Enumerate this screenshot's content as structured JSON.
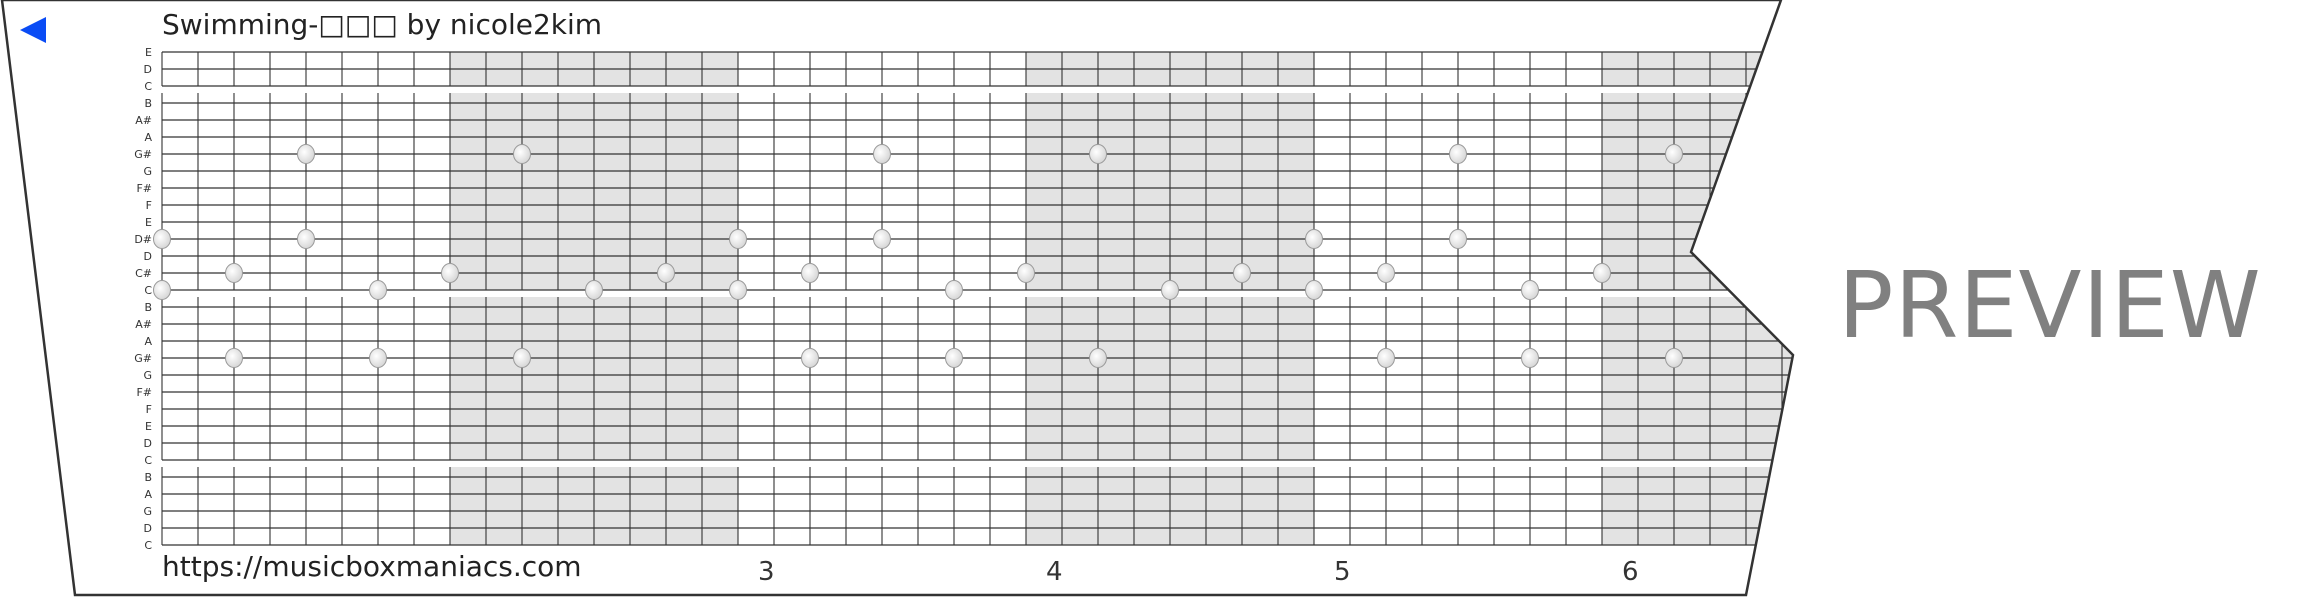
{
  "header": {
    "title": "Swimming-□□□ by nicole2kim",
    "back_icon": "back-triangle-icon"
  },
  "footer": {
    "url": "https://musicboxmaniacs.com"
  },
  "watermark": "PREVIEW",
  "colors": {
    "shade": "#e3e3e3",
    "grid": "#333333",
    "back": "#0a4cf5",
    "watermark": "#808080"
  },
  "score": {
    "row_labels": [
      "E",
      "D",
      "C",
      "B",
      "A#",
      "A",
      "G#",
      "G",
      "F#",
      "F",
      "E",
      "D#",
      "D",
      "C#",
      "C",
      "B",
      "A#",
      "A",
      "G#",
      "G",
      "F#",
      "F",
      "E",
      "D",
      "C",
      "B",
      "A",
      "G",
      "D",
      "C"
    ],
    "measure_labels": [
      {
        "measure": 3,
        "label": "3"
      },
      {
        "measure": 4,
        "label": "4"
      },
      {
        "measure": 5,
        "label": "5"
      },
      {
        "measure": 6,
        "label": "6"
      }
    ],
    "beats_per_measure": 8,
    "notes": [
      {
        "row": 6,
        "beat": 4
      },
      {
        "row": 6,
        "beat": 10
      },
      {
        "row": 6,
        "beat": 20
      },
      {
        "row": 6,
        "beat": 26
      },
      {
        "row": 6,
        "beat": 36
      },
      {
        "row": 6,
        "beat": 42
      },
      {
        "row": 11,
        "beat": 0
      },
      {
        "row": 11,
        "beat": 4
      },
      {
        "row": 11,
        "beat": 16
      },
      {
        "row": 11,
        "beat": 20
      },
      {
        "row": 11,
        "beat": 32
      },
      {
        "row": 11,
        "beat": 36
      },
      {
        "row": 13,
        "beat": 2
      },
      {
        "row": 13,
        "beat": 8
      },
      {
        "row": 13,
        "beat": 14
      },
      {
        "row": 13,
        "beat": 18
      },
      {
        "row": 13,
        "beat": 24
      },
      {
        "row": 13,
        "beat": 30
      },
      {
        "row": 13,
        "beat": 34
      },
      {
        "row": 13,
        "beat": 40
      },
      {
        "row": 14,
        "beat": 0
      },
      {
        "row": 14,
        "beat": 6
      },
      {
        "row": 14,
        "beat": 12
      },
      {
        "row": 14,
        "beat": 16
      },
      {
        "row": 14,
        "beat": 22
      },
      {
        "row": 14,
        "beat": 28
      },
      {
        "row": 14,
        "beat": 32
      },
      {
        "row": 14,
        "beat": 38
      },
      {
        "row": 18,
        "beat": 2
      },
      {
        "row": 18,
        "beat": 6
      },
      {
        "row": 18,
        "beat": 10
      },
      {
        "row": 18,
        "beat": 18
      },
      {
        "row": 18,
        "beat": 22
      },
      {
        "row": 18,
        "beat": 26
      },
      {
        "row": 18,
        "beat": 34
      },
      {
        "row": 18,
        "beat": 38
      },
      {
        "row": 18,
        "beat": 42
      }
    ]
  }
}
